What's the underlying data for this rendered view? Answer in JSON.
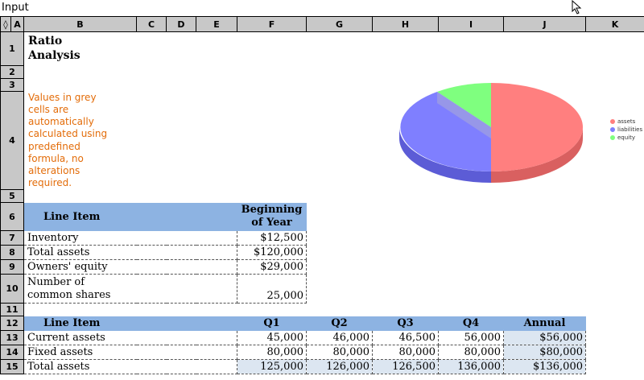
{
  "app": {
    "title": "Input"
  },
  "columns": [
    "◊",
    "A",
    "B",
    "C",
    "D",
    "E",
    "F",
    "G",
    "H",
    "I",
    "J",
    "K"
  ],
  "rows": [
    "1",
    "2",
    "3",
    "4",
    "5",
    "6",
    "7",
    "8",
    "9",
    "10",
    "11",
    "12",
    "13",
    "14",
    "15"
  ],
  "sheet": {
    "title_line1": "Ratio",
    "title_line2": "Analysis",
    "note": [
      "Values in grey",
      "cells are",
      "automatically",
      "calculated using",
      "predefined",
      "formula, no",
      "alterations",
      "required."
    ],
    "table1": {
      "header_item": "Line Item",
      "header_boy_1": "Beginning",
      "header_boy_2": "of Year",
      "rows": [
        {
          "label": "Inventory",
          "value": "$12,500"
        },
        {
          "label": "Total assets",
          "value": "$120,000"
        },
        {
          "label": "Owners' equity",
          "value": "$29,000"
        },
        {
          "label1": "Number of",
          "label2": "common shares",
          "value": "25,000"
        }
      ]
    },
    "table2": {
      "headers": [
        "Line Item",
        "Q1",
        "Q2",
        "Q3",
        "Q4",
        "Annual"
      ],
      "rows": [
        {
          "label": "Current assets",
          "q1": "45,000",
          "q2": "46,000",
          "q3": "46,500",
          "q4": "56,000",
          "annual": "$56,000"
        },
        {
          "label": "Fixed assets",
          "q1": "80,000",
          "q2": "80,000",
          "q3": "80,000",
          "q4": "80,000",
          "annual": "$80,000"
        },
        {
          "label": "Total assets",
          "q1": "125,000",
          "q2": "126,000",
          "q3": "126,500",
          "q4": "136,000",
          "annual": "$136,000"
        }
      ]
    }
  },
  "chart": {
    "legend": [
      {
        "name": "assets",
        "color": "#ff7f7f"
      },
      {
        "name": "liabilities",
        "color": "#7f7fff"
      },
      {
        "name": "equity",
        "color": "#7fff7f"
      }
    ]
  },
  "icons": {
    "cursor": "mouse-pointer-icon"
  }
}
